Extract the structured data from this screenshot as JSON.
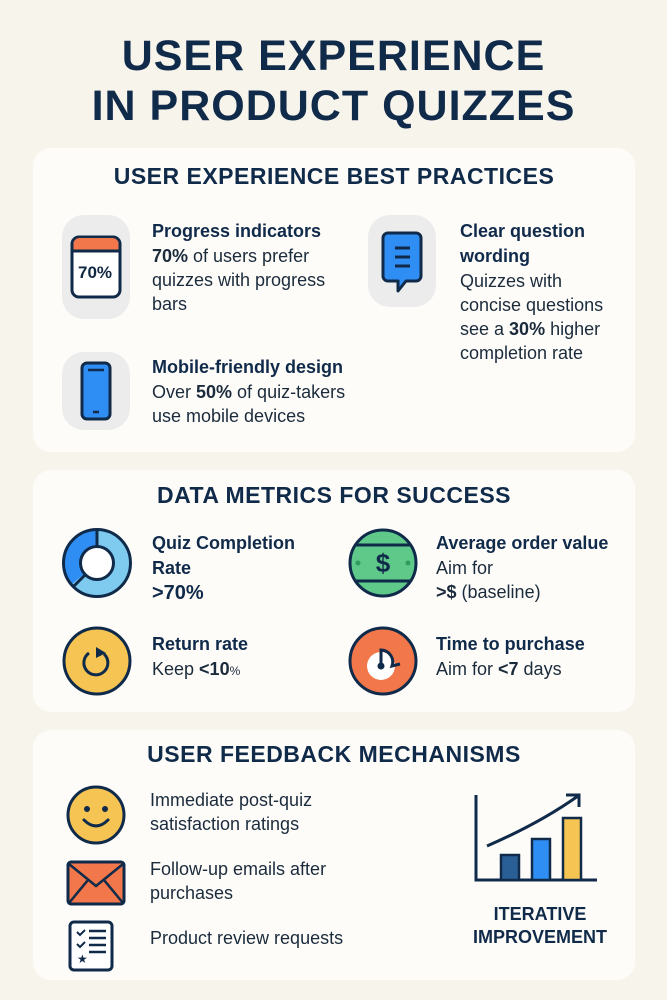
{
  "title": {
    "line1": "USER EXPERIENCE",
    "line2": "IN PRODUCT QUIZZES"
  },
  "best_practices": {
    "heading": "USER EXPERIENCE BEST PRACTICES",
    "items": [
      {
        "icon": "progress-calendar-icon",
        "icon_text": "70%",
        "title": "Progress indicators",
        "bold": "70%",
        "text": " of users prefer quizzes with progress bars"
      },
      {
        "icon": "speech-bubble-icon",
        "title": "Clear question wording",
        "pre": "Quizzes with concise questions see a ",
        "bold": "30%",
        "text": " higher completion rate"
      },
      {
        "icon": "smartphone-icon",
        "title": "Mobile-friendly design",
        "pre": "Over ",
        "bold": "50%",
        "text": " of quiz-takers use mobile devices"
      }
    ]
  },
  "metrics": {
    "heading": "DATA METRICS FOR SUCCESS",
    "items": [
      {
        "icon": "donut-chart-icon",
        "title": "Quiz Completion Rate",
        "value": ">70%"
      },
      {
        "icon": "dollar-bill-icon",
        "title": "Average order value",
        "pre": "Aim for",
        "value": ">$",
        "text": " (baseline)"
      },
      {
        "icon": "return-arrow-icon",
        "title": "Return rate",
        "pre": "Keep ",
        "value": "<10",
        "unit": "%"
      },
      {
        "icon": "clock-icon",
        "title": "Time to purchase",
        "pre": "Aim for ",
        "value": "<7",
        "text": " days"
      }
    ]
  },
  "feedback": {
    "heading": "USER FEEDBACK MECHANISMS",
    "items": [
      {
        "icon": "smiley-face-icon",
        "text": "Immediate post-quiz satisfaction ratings"
      },
      {
        "icon": "envelope-icon",
        "text": "Follow-up emails after purchases"
      },
      {
        "icon": "checklist-icon",
        "text": "Product review requests"
      }
    ],
    "graphic": {
      "icon": "rising-bar-chart-icon",
      "label_line1": "ITERATIVE",
      "label_line2": "IMPROVEMENT"
    }
  },
  "colors": {
    "navy": "#102a4a",
    "blue": "#2f8ef4",
    "orange": "#f2774a",
    "yellow": "#f6c453",
    "green": "#5fc98a",
    "background": "#f7f4ec"
  }
}
